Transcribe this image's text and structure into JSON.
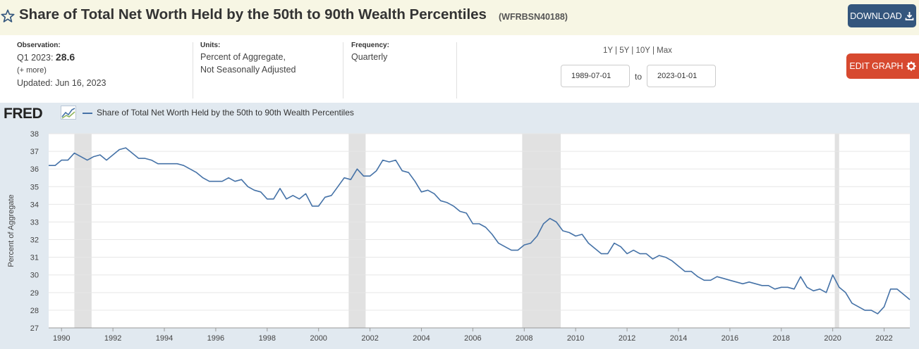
{
  "header": {
    "title": "Share of Total Net Worth Held by the 50th to 90th Wealth Percentiles",
    "series_id": "(WFRBSN40188)",
    "download_label": "DOWNLOAD",
    "icons": [
      "star-icon",
      "download-icon"
    ]
  },
  "meta": {
    "observation_label": "Observation:",
    "observation_period": "Q1 2023:",
    "observation_value": "28.6",
    "more_link": "(+ more)",
    "updated": "Updated: Jun 16, 2023",
    "units_label": "Units:",
    "units_line1": "Percent of Aggregate,",
    "units_line2": "Not Seasonally Adjusted",
    "frequency_label": "Frequency:",
    "frequency_value": "Quarterly"
  },
  "range_controls": {
    "presets": [
      "1Y",
      "5Y",
      "10Y",
      "Max"
    ],
    "separator": " | ",
    "start_date": "1989-07-01",
    "to_label": "to",
    "end_date": "2023-01-01"
  },
  "edit_graph_label": "EDIT GRAPH",
  "colors": {
    "series": "#4572a7",
    "recession": "#e1e1e1",
    "panel": "#e1e9f0",
    "edit": "#d7492f",
    "download": "#34567d"
  },
  "chart_data": {
    "type": "line",
    "title": "",
    "brand": "FRED",
    "ylabel": "Percent of Aggregate",
    "xlabel": "",
    "ylim": [
      27,
      38
    ],
    "yticks": [
      27,
      28,
      29,
      30,
      31,
      32,
      33,
      34,
      35,
      36,
      37,
      38
    ],
    "xlim": [
      1989.5,
      2023.0
    ],
    "xticks": [
      1990,
      1992,
      1994,
      1996,
      1998,
      2000,
      2002,
      2004,
      2006,
      2008,
      2010,
      2012,
      2014,
      2016,
      2018,
      2020,
      2022
    ],
    "recessions": [
      [
        1990.5,
        1991.17
      ],
      [
        2001.17,
        2001.83
      ],
      [
        2007.92,
        2009.42
      ],
      [
        2020.08,
        2020.25
      ]
    ],
    "grid": true,
    "series": [
      {
        "name": "Share of Total Net Worth Held by the 50th to 90th Wealth Percentiles",
        "start": "1989-07-01",
        "frequency": "quarterly",
        "values": [
          36.2,
          36.2,
          36.5,
          36.5,
          36.9,
          36.7,
          36.5,
          36.7,
          36.8,
          36.5,
          36.8,
          37.1,
          37.2,
          36.9,
          36.6,
          36.6,
          36.5,
          36.3,
          36.3,
          36.3,
          36.3,
          36.2,
          36.0,
          35.8,
          35.5,
          35.3,
          35.3,
          35.3,
          35.5,
          35.3,
          35.4,
          35.0,
          34.8,
          34.7,
          34.3,
          34.3,
          34.9,
          34.3,
          34.5,
          34.3,
          34.6,
          33.9,
          33.9,
          34.4,
          34.5,
          35.0,
          35.5,
          35.4,
          36.0,
          35.6,
          35.6,
          35.9,
          36.5,
          36.4,
          36.5,
          35.9,
          35.8,
          35.3,
          34.7,
          34.8,
          34.6,
          34.2,
          34.1,
          33.9,
          33.6,
          33.5,
          32.9,
          32.9,
          32.7,
          32.3,
          31.8,
          31.6,
          31.4,
          31.4,
          31.7,
          31.8,
          32.2,
          32.9,
          33.2,
          33.0,
          32.5,
          32.4,
          32.2,
          32.3,
          31.8,
          31.5,
          31.2,
          31.2,
          31.8,
          31.6,
          31.2,
          31.4,
          31.2,
          31.2,
          30.9,
          31.1,
          31.0,
          30.8,
          30.5,
          30.2,
          30.2,
          29.9,
          29.7,
          29.7,
          29.9,
          29.8,
          29.7,
          29.6,
          29.5,
          29.6,
          29.5,
          29.4,
          29.4,
          29.2,
          29.3,
          29.3,
          29.2,
          29.9,
          29.3,
          29.1,
          29.2,
          29.0,
          30.0,
          29.3,
          29.0,
          28.4,
          28.2,
          28.0,
          28.0,
          27.8,
          28.2,
          29.2,
          29.2,
          28.9,
          28.6
        ]
      }
    ]
  }
}
